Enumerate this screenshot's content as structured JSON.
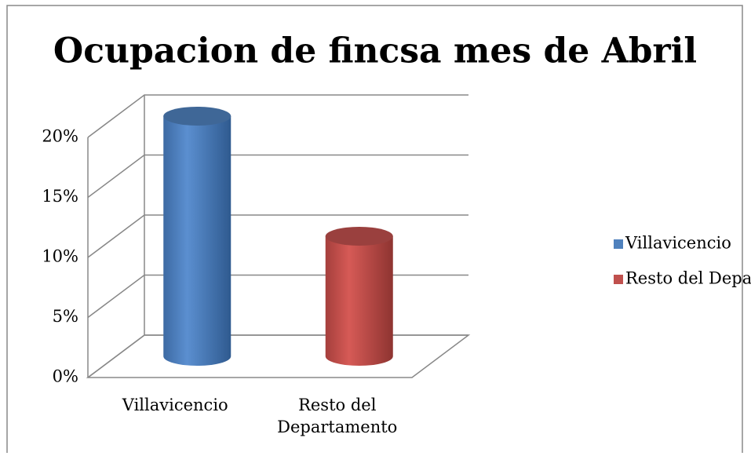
{
  "chart_data": {
    "type": "cylinder",
    "title": "Ocupacion de fincsa mes de Abril",
    "categories": [
      "Villavicencio",
      "Resto del Departamento"
    ],
    "values": [
      20,
      10
    ],
    "colors": [
      "#4f81bd",
      "#c0504d"
    ],
    "ylim": [
      0,
      20
    ],
    "yticks": [
      {
        "value": 0,
        "label": "0%"
      },
      {
        "value": 5,
        "label": "5%"
      },
      {
        "value": 10,
        "label": "10%"
      },
      {
        "value": 15,
        "label": "15%"
      },
      {
        "value": 20,
        "label": "20%"
      }
    ],
    "grid": true,
    "legend": "right"
  }
}
